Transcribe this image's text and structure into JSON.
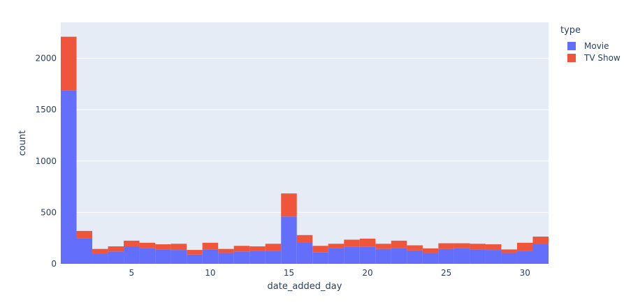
{
  "chart_data": {
    "type": "bar",
    "barmode": "stack",
    "xlabel": "date_added_day",
    "ylabel": "count",
    "xlim": [
      0.5,
      31.5
    ],
    "ylim": [
      0,
      2350
    ],
    "x_ticks": [
      5,
      10,
      15,
      20,
      25,
      30
    ],
    "y_ticks": [
      0,
      500,
      1000,
      1500,
      2000
    ],
    "grid": true,
    "legend_title": "type",
    "legend_position": "top-right",
    "x": [
      1,
      2,
      3,
      4,
      5,
      6,
      7,
      8,
      9,
      10,
      11,
      12,
      13,
      14,
      15,
      16,
      17,
      18,
      19,
      20,
      21,
      22,
      23,
      24,
      25,
      26,
      27,
      28,
      29,
      30,
      31
    ],
    "series": [
      {
        "name": "Movie",
        "color": "#636efa",
        "values": [
          1690,
          245,
          95,
          120,
          170,
          150,
          140,
          135,
          90,
          140,
          105,
          120,
          125,
          125,
          460,
          210,
          110,
          150,
          165,
          165,
          145,
          150,
          130,
          105,
          145,
          150,
          140,
          135,
          105,
          125,
          190
        ]
      },
      {
        "name": "TV Show",
        "color": "#ef553b",
        "values": [
          520,
          75,
          50,
          50,
          55,
          55,
          50,
          60,
          45,
          65,
          40,
          55,
          45,
          70,
          225,
          70,
          65,
          45,
          70,
          80,
          50,
          75,
          50,
          45,
          55,
          50,
          55,
          55,
          35,
          80,
          75
        ]
      }
    ]
  }
}
